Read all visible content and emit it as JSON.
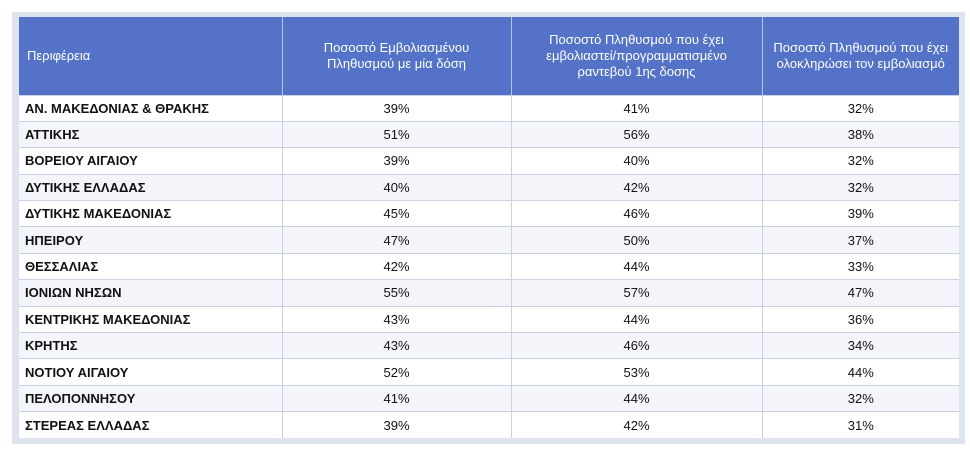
{
  "table": {
    "headers": [
      "Περιφέρεια",
      "Ποσοστό Εμβολιασμένου Πληθυσμού με μία δόση",
      "Ποσοστό Πληθυσμού  που έχει εμβολιαστεί/προγραμματισμένο ραντεβού 1ης δοσης",
      "Ποσοστό Πληθυσμού που έχει ολοκληρώσει τον εμβολιασμό"
    ],
    "rows": [
      [
        "ΑΝ. ΜΑΚΕΔΟΝΙΑΣ & ΘΡΑΚΗΣ",
        "39%",
        "41%",
        "32%"
      ],
      [
        "ΑΤΤΙΚΗΣ",
        "51%",
        "56%",
        "38%"
      ],
      [
        "ΒΟΡΕΙΟΥ ΑΙΓΑΙΟΥ",
        "39%",
        "40%",
        "32%"
      ],
      [
        "ΔΥΤΙΚΗΣ ΕΛΛΑΔΑΣ",
        "40%",
        "42%",
        "32%"
      ],
      [
        "ΔΥΤΙΚΗΣ ΜΑΚΕΔΟΝΙΑΣ",
        "45%",
        "46%",
        "39%"
      ],
      [
        "ΗΠΕΙΡΟΥ",
        "47%",
        "50%",
        "37%"
      ],
      [
        "ΘΕΣΣΑΛΙΑΣ",
        "42%",
        "44%",
        "33%"
      ],
      [
        "ΙΟΝΙΩΝ ΝΗΣΩΝ",
        "55%",
        "57%",
        "47%"
      ],
      [
        "ΚΕΝΤΡΙΚΗΣ ΜΑΚΕΔΟΝΙΑΣ",
        "43%",
        "44%",
        "36%"
      ],
      [
        "ΚΡΗΤΗΣ",
        "43%",
        "46%",
        "34%"
      ],
      [
        "ΝΟΤΙΟΥ ΑΙΓΑΙΟΥ",
        "52%",
        "53%",
        "44%"
      ],
      [
        "ΠΕΛΟΠΟΝΝΗΣΟΥ",
        "41%",
        "44%",
        "32%"
      ],
      [
        "ΣΤΕΡΕΑΣ ΕΛΛΑΔΑΣ",
        "39%",
        "42%",
        "31%"
      ]
    ]
  },
  "colors": {
    "header_bg": "#5473c8",
    "header_text": "#ffffff",
    "frame_bg": "#dde3ef",
    "row_alt_bg": "#f3f5fa"
  }
}
